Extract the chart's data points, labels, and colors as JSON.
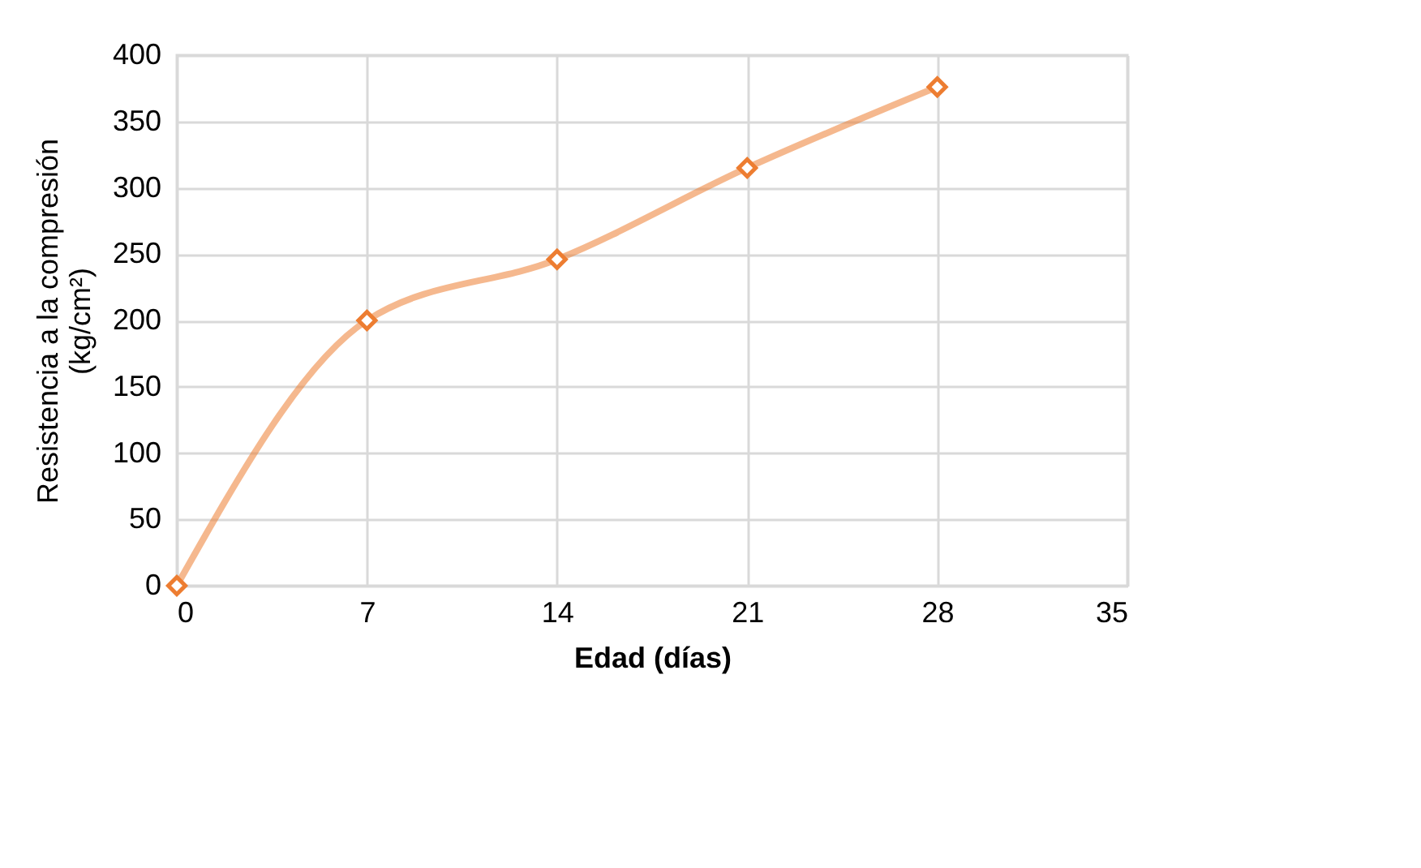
{
  "chart_data": {
    "type": "line",
    "x": [
      0,
      7,
      14,
      21,
      28
    ],
    "series": [
      {
        "color": "#ed7d31",
        "values": [
          0,
          200,
          246,
          315,
          376
        ]
      }
    ],
    "xlabel": "Edad (días)",
    "ylabel": "Resistencia a la compresión\n(kg/cm²)",
    "xlim": [
      0,
      35
    ],
    "xticks": [
      0,
      7,
      14,
      21,
      28,
      35
    ],
    "ylim": [
      0,
      400
    ],
    "yticks": [
      0,
      50,
      100,
      150,
      200,
      250,
      300,
      350,
      400
    ],
    "grid": true,
    "marker": "diamond",
    "line_style": "solid"
  }
}
